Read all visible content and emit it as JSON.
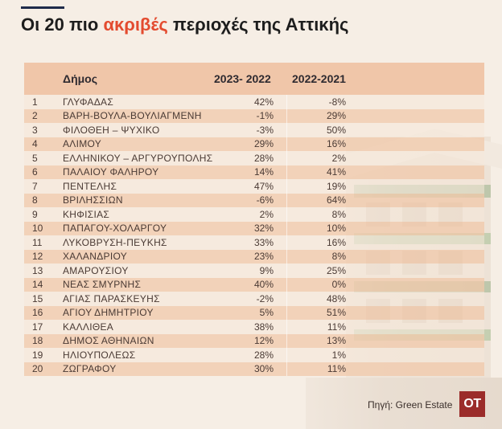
{
  "title": {
    "before": "Οι ",
    "number": "20",
    "middle": " πιο ",
    "highlight": "ακριβές",
    "after": " περιοχές της Αττικής"
  },
  "colors": {
    "header_bg": "#f0c6a9",
    "row_odd": "#f6e7d8",
    "row_even": "#f0c8aa",
    "title_highlight": "#e34b2f",
    "logo_bg": "#9b2c2a"
  },
  "chart_data": {
    "type": "table",
    "columns": [
      "Δήμος",
      "2023- 2022",
      "2022-2021"
    ],
    "rows": [
      [
        "1",
        "ΓΛΥΦΑΔΑΣ",
        "42%",
        "-8%"
      ],
      [
        "2",
        "ΒΑΡΗ-ΒΟΥΛΑ-ΒΟΥΛΙΑΓΜΕΝΗ",
        "-1%",
        "29%"
      ],
      [
        "3",
        "ΦΙΛΟΘΕΗ – ΨΥΧΙΚΟ",
        "-3%",
        "50%"
      ],
      [
        "4",
        "ΑΛΙΜΟΥ",
        "29%",
        "16%"
      ],
      [
        "5",
        "ΕΛΛΗΝΙΚΟΥ – ΑΡΓΥΡΟΥΠΟΛΗΣ",
        "28%",
        "2%"
      ],
      [
        "6",
        "ΠΑΛΑΙΟΥ ΦΑΛΗΡΟΥ",
        "14%",
        "41%"
      ],
      [
        "7",
        "ΠΕΝΤΕΛΗΣ",
        "47%",
        "19%"
      ],
      [
        "8",
        "ΒΡΙΛΗΣΣΙΩΝ",
        "-6%",
        "64%"
      ],
      [
        "9",
        "ΚΗΦΙΣΙΑΣ",
        "2%",
        "8%"
      ],
      [
        "10",
        "ΠΑΠΑΓΟΥ-ΧΟΛΑΡΓΟΥ",
        "32%",
        "10%"
      ],
      [
        "11",
        "ΛΥΚΟΒΡΥΣΗ-ΠΕΥΚΗΣ",
        "33%",
        "16%"
      ],
      [
        "12",
        "ΧΑΛΑΝΔΡΙΟΥ",
        "23%",
        "8%"
      ],
      [
        "13",
        "ΑΜΑΡΟΥΣΙΟΥ",
        "9%",
        "25%"
      ],
      [
        "14",
        "ΝΕΑΣ ΣΜΥΡΝΗΣ",
        "40%",
        "0%"
      ],
      [
        "15",
        "ΑΓΙΑΣ ΠΑΡΑΣΚΕΥΗΣ",
        "-2%",
        "48%"
      ],
      [
        "16",
        "ΑΓΙΟΥ ΔΗΜΗΤΡΙΟΥ",
        "5%",
        "51%"
      ],
      [
        "17",
        "ΚΑΛΛΙΘΕΑ",
        "38%",
        "11%"
      ],
      [
        "18",
        "ΔΗΜΟΣ ΑΘΗΝΑΙΩΝ",
        "12%",
        "13%"
      ],
      [
        "19",
        "ΗΛΙΟΥΠΟΛΕΩΣ",
        "28%",
        "1%"
      ],
      [
        "20",
        "ΖΩΓΡΑΦΟΥ",
        "30%",
        "11%"
      ]
    ]
  },
  "footer": {
    "source": "Πηγή: Green Estate",
    "logo": "OT"
  },
  "icons": {
    "logo": "ot-logo-icon",
    "background": "building-illustration"
  }
}
